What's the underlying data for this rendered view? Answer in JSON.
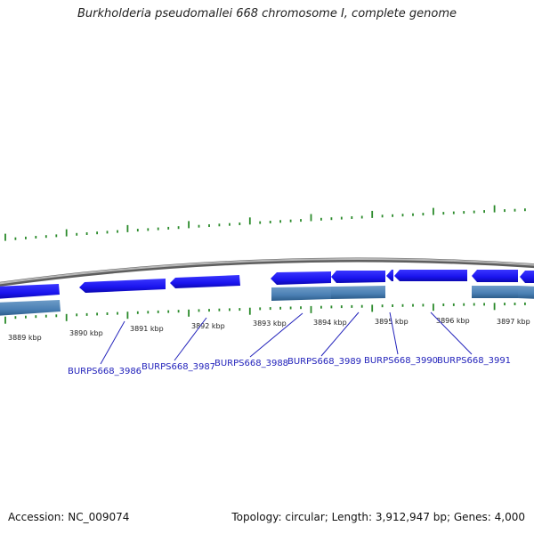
{
  "title": "Burkholderia pseudomallei 668 chromosome I, complete genome",
  "footer": {
    "accession": "Accession: NC_009074",
    "summary": "Topology: circular; Length: 3,912,947 bp; Genes: 4,000"
  },
  "kbp_labels": [
    "3889 kbp",
    "3890 kbp",
    "3891 kbp",
    "3892 kbp",
    "3893 kbp",
    "3894 kbp",
    "3895 kbp",
    "3896 kbp",
    "3897 kbp"
  ],
  "locus_tags": [
    "BURPS668_3986",
    "BURPS668_3987",
    "BURPS668_3988",
    "BURPS668_3989",
    "BURPS668_3990",
    "BURPS668_3991"
  ],
  "colors": {
    "gene_blue": "#1a14ee",
    "cds_steel": "#4a7fb3",
    "backbone": "#8a8a8a",
    "ticks": "#2a8a2a",
    "label_blue": "#2222bb"
  }
}
